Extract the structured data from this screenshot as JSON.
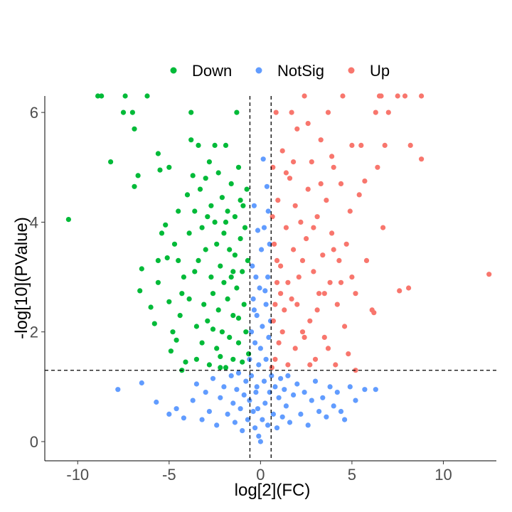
{
  "chart_data": {
    "type": "scatter",
    "title": "",
    "xlabel": "log[2](FC)",
    "ylabel": "-log[10](PValue)",
    "xlim": [
      -11.8,
      12.9
    ],
    "ylim": [
      -0.35,
      6.3
    ],
    "x_ticks": [
      -10,
      -5,
      0,
      5,
      10
    ],
    "x_tick_labels": [
      "-10",
      "-5",
      "0",
      "5",
      "10"
    ],
    "y_ticks": [
      0,
      2,
      4,
      6
    ],
    "y_tick_labels": [
      "0",
      "2",
      "4",
      "6"
    ],
    "grid": false,
    "legend_position": "top",
    "thresholds": {
      "fc_low": -0.58,
      "fc_high": 0.58,
      "pvalue_line": 1.3
    },
    "series": [
      {
        "name": "Down",
        "color": "#00BA38",
        "points": [
          [
            -10.5,
            4.05
          ],
          [
            -8.9,
            6.3
          ],
          [
            -8.7,
            6.3
          ],
          [
            -8.2,
            5.1
          ],
          [
            -7.5,
            6.0
          ],
          [
            -7.4,
            6.3
          ],
          [
            -7.0,
            6.0
          ],
          [
            -6.9,
            5.7
          ],
          [
            -6.9,
            4.65
          ],
          [
            -6.7,
            4.85
          ],
          [
            -6.6,
            2.75
          ],
          [
            -6.5,
            3.15
          ],
          [
            -6.2,
            6.3
          ],
          [
            -6.0,
            2.45
          ],
          [
            -5.8,
            2.15
          ],
          [
            -5.6,
            3.3
          ],
          [
            -5.6,
            2.9
          ],
          [
            -5.6,
            5.25
          ],
          [
            -5.5,
            4.95
          ],
          [
            -5.4,
            3.8
          ],
          [
            -5.2,
            3.95
          ],
          [
            -5.1,
            3.35
          ],
          [
            -5.0,
            2.55
          ],
          [
            -5.0,
            5.0
          ],
          [
            -4.9,
            1.65
          ],
          [
            -4.8,
            2.0
          ],
          [
            -4.7,
            3.6
          ],
          [
            -4.6,
            1.85
          ],
          [
            -4.5,
            4.2
          ],
          [
            -4.5,
            3.3
          ],
          [
            -4.4,
            2.3
          ],
          [
            -4.3,
            2.7
          ],
          [
            -4.2,
            3.0
          ],
          [
            -4.1,
            1.45
          ],
          [
            -4.0,
            4.5
          ],
          [
            -3.9,
            3.8
          ],
          [
            -3.8,
            6.0
          ],
          [
            -3.8,
            5.5
          ],
          [
            -3.7,
            4.85
          ],
          [
            -3.6,
            4.2
          ],
          [
            -3.5,
            2.1
          ],
          [
            -3.5,
            1.5
          ],
          [
            -3.4,
            5.4
          ],
          [
            -3.4,
            3.3
          ],
          [
            -3.3,
            4.6
          ],
          [
            -3.2,
            3.9
          ],
          [
            -3.2,
            1.8
          ],
          [
            -3.1,
            2.5
          ],
          [
            -3.0,
            4.8
          ],
          [
            -3.0,
            3.5
          ],
          [
            -2.9,
            2.2
          ],
          [
            -2.8,
            5.1
          ],
          [
            -2.8,
            1.4
          ],
          [
            -2.7,
            4.3
          ],
          [
            -2.7,
            3.0
          ],
          [
            -2.6,
            2.7
          ],
          [
            -2.5,
            5.4
          ],
          [
            -2.5,
            4.0
          ],
          [
            -2.4,
            3.6
          ],
          [
            -2.4,
            1.7
          ],
          [
            -2.3,
            4.9
          ],
          [
            -2.3,
            2.4
          ],
          [
            -2.2,
            3.2
          ],
          [
            -2.2,
            1.55
          ],
          [
            -2.1,
            4.45
          ],
          [
            -2.1,
            2.0
          ],
          [
            -2.0,
            3.8
          ],
          [
            -2.0,
            2.9
          ],
          [
            -1.9,
            5.4
          ],
          [
            -1.9,
            1.35
          ],
          [
            -1.8,
            4.2
          ],
          [
            -1.8,
            2.6
          ],
          [
            -1.7,
            3.5
          ],
          [
            -1.7,
            1.9
          ],
          [
            -1.6,
            4.7
          ],
          [
            -1.6,
            3.0
          ],
          [
            -1.5,
            2.3
          ],
          [
            -1.5,
            1.5
          ],
          [
            -1.4,
            4.1
          ],
          [
            -1.4,
            3.4
          ],
          [
            -1.3,
            6.0
          ],
          [
            -1.3,
            2.8
          ],
          [
            -1.2,
            5.0
          ],
          [
            -1.2,
            1.8
          ],
          [
            -1.1,
            4.4
          ],
          [
            -1.1,
            3.7
          ],
          [
            -1.0,
            3.1
          ],
          [
            -1.0,
            1.45
          ],
          [
            -0.95,
            4.3
          ],
          [
            -0.9,
            2.5
          ],
          [
            -0.85,
            3.9
          ],
          [
            -0.8,
            2.0
          ],
          [
            -0.75,
            4.6
          ],
          [
            -0.7,
            3.3
          ],
          [
            -0.65,
            1.6
          ],
          [
            -2.9,
            4.1
          ],
          [
            -3.6,
            3.1
          ],
          [
            -2.6,
            2.05
          ],
          [
            -1.9,
            4.0
          ],
          [
            -1.5,
            3.1
          ],
          [
            -2.2,
            1.35
          ],
          [
            -3.9,
            2.6
          ],
          [
            -4.3,
            1.3
          ],
          [
            -1.2,
            2.25
          ]
        ]
      },
      {
        "name": "NotSig",
        "color": "#619CFF",
        "points": [
          [
            -7.8,
            0.95
          ],
          [
            -6.5,
            1.07
          ],
          [
            -5.7,
            0.72
          ],
          [
            -5.0,
            0.5
          ],
          [
            -4.6,
            0.6
          ],
          [
            -4.2,
            0.43
          ],
          [
            -3.7,
            0.75
          ],
          [
            -3.5,
            1.05
          ],
          [
            -3.2,
            0.4
          ],
          [
            -3.0,
            0.9
          ],
          [
            -2.8,
            0.55
          ],
          [
            -2.6,
            1.15
          ],
          [
            -2.4,
            0.3
          ],
          [
            -2.2,
            0.8
          ],
          [
            -2.0,
            1.0
          ],
          [
            -1.8,
            0.5
          ],
          [
            -1.6,
            1.2
          ],
          [
            -1.5,
            0.7
          ],
          [
            -1.4,
            0.35
          ],
          [
            -1.3,
            0.95
          ],
          [
            -1.2,
            1.25
          ],
          [
            -1.1,
            0.6
          ],
          [
            -1.0,
            0.2
          ],
          [
            -0.9,
            0.85
          ],
          [
            -0.8,
            1.1
          ],
          [
            -0.7,
            0.4
          ],
          [
            -0.6,
            1.5
          ],
          [
            -0.6,
            0.75
          ],
          [
            -0.5,
            2.0
          ],
          [
            -0.5,
            1.2
          ],
          [
            -0.45,
            3.2
          ],
          [
            -0.4,
            0.55
          ],
          [
            -0.4,
            2.6
          ],
          [
            -0.35,
            4.3
          ],
          [
            -0.3,
            1.8
          ],
          [
            -0.3,
            0.25
          ],
          [
            -0.25,
            3.0
          ],
          [
            -0.2,
            1.0
          ],
          [
            -0.2,
            2.3
          ],
          [
            -0.15,
            0.6
          ],
          [
            -0.1,
            1.4
          ],
          [
            -0.1,
            0.1
          ],
          [
            -0.05,
            2.8
          ],
          [
            0.0,
            0.0
          ],
          [
            0.0,
            1.7
          ],
          [
            0.05,
            3.5
          ],
          [
            0.1,
            0.4
          ],
          [
            0.1,
            2.1
          ],
          [
            0.15,
            5.15
          ],
          [
            0.2,
            1.1
          ],
          [
            0.2,
            3.9
          ],
          [
            0.25,
            0.7
          ],
          [
            0.3,
            2.5
          ],
          [
            0.3,
            1.5
          ],
          [
            0.35,
            4.65
          ],
          [
            0.4,
            0.3
          ],
          [
            0.4,
            3.0
          ],
          [
            0.45,
            1.9
          ],
          [
            0.5,
            0.9
          ],
          [
            0.5,
            3.6
          ],
          [
            0.55,
            2.2
          ],
          [
            0.6,
            1.2
          ],
          [
            0.7,
            0.5
          ],
          [
            0.8,
            1.0
          ],
          [
            0.9,
            0.25
          ],
          [
            1.0,
            0.8
          ],
          [
            1.1,
            1.15
          ],
          [
            1.2,
            0.45
          ],
          [
            1.3,
            0.95
          ],
          [
            1.4,
            0.65
          ],
          [
            1.5,
            1.2
          ],
          [
            1.6,
            0.35
          ],
          [
            1.8,
            0.85
          ],
          [
            2.0,
            1.05
          ],
          [
            2.2,
            0.5
          ],
          [
            2.4,
            0.9
          ],
          [
            2.6,
            0.3
          ],
          [
            2.8,
            0.75
          ],
          [
            3.0,
            1.1
          ],
          [
            3.2,
            0.55
          ],
          [
            3.4,
            0.8
          ],
          [
            3.6,
            0.45
          ],
          [
            3.8,
            1.0
          ],
          [
            4.0,
            0.65
          ],
          [
            4.2,
            0.9
          ],
          [
            4.4,
            0.55
          ],
          [
            4.6,
            0.4
          ],
          [
            4.9,
            1.0
          ],
          [
            5.2,
            0.75
          ],
          [
            5.7,
            0.95
          ],
          [
            6.3,
            0.95
          ],
          [
            -0.35,
            2.4
          ],
          [
            0.25,
            2.75
          ],
          [
            -0.15,
            3.85
          ],
          [
            0.42,
            4.2
          ],
          [
            -0.25,
            0.9
          ]
        ]
      },
      {
        "name": "Up",
        "color": "#F8766D",
        "points": [
          [
            12.5,
            3.05
          ],
          [
            8.8,
            5.15
          ],
          [
            8.8,
            6.3
          ],
          [
            8.2,
            5.4
          ],
          [
            8.1,
            2.8
          ],
          [
            7.9,
            6.3
          ],
          [
            7.6,
            2.75
          ],
          [
            7.5,
            6.3
          ],
          [
            7.0,
            6.0
          ],
          [
            6.8,
            5.4
          ],
          [
            6.7,
            3.9
          ],
          [
            6.5,
            6.3
          ],
          [
            6.4,
            5.0
          ],
          [
            6.3,
            6.0
          ],
          [
            6.2,
            2.35
          ],
          [
            6.1,
            2.4
          ],
          [
            5.8,
            3.3
          ],
          [
            5.7,
            4.75
          ],
          [
            5.5,
            5.4
          ],
          [
            5.4,
            4.5
          ],
          [
            5.2,
            2.7
          ],
          [
            5.0,
            3.0
          ],
          [
            5.0,
            5.4
          ],
          [
            4.9,
            4.2
          ],
          [
            4.8,
            1.6
          ],
          [
            4.7,
            3.6
          ],
          [
            4.6,
            2.1
          ],
          [
            4.5,
            6.3
          ],
          [
            4.4,
            4.7
          ],
          [
            4.3,
            3.3
          ],
          [
            4.2,
            2.5
          ],
          [
            4.1,
            1.4
          ],
          [
            4.0,
            5.0
          ],
          [
            3.9,
            3.8
          ],
          [
            3.8,
            2.9
          ],
          [
            3.7,
            6.0
          ],
          [
            3.6,
            4.4
          ],
          [
            3.5,
            1.9
          ],
          [
            3.4,
            3.4
          ],
          [
            3.3,
            5.5
          ],
          [
            3.2,
            2.7
          ],
          [
            3.1,
            4.1
          ],
          [
            3.0,
            1.5
          ],
          [
            2.9,
            3.1
          ],
          [
            2.8,
            5.1
          ],
          [
            2.7,
            2.2
          ],
          [
            2.6,
            4.6
          ],
          [
            2.5,
            3.7
          ],
          [
            2.4,
            6.3
          ],
          [
            2.3,
            2.0
          ],
          [
            2.2,
            4.0
          ],
          [
            2.1,
            3.0
          ],
          [
            2.0,
            5.7
          ],
          [
            1.9,
            1.7
          ],
          [
            1.8,
            3.5
          ],
          [
            1.7,
            2.6
          ],
          [
            1.6,
            4.8
          ],
          [
            1.5,
            1.4
          ],
          [
            1.4,
            3.9
          ],
          [
            1.3,
            2.4
          ],
          [
            1.2,
            5.3
          ],
          [
            1.1,
            3.2
          ],
          [
            1.0,
            1.8
          ],
          [
            0.95,
            4.4
          ],
          [
            0.9,
            2.9
          ],
          [
            0.85,
            6.0
          ],
          [
            0.8,
            1.5
          ],
          [
            0.75,
            3.6
          ],
          [
            0.7,
            2.2
          ],
          [
            0.68,
            5.0
          ],
          [
            0.65,
            4.1
          ],
          [
            0.62,
            1.35
          ],
          [
            1.5,
            2.9
          ],
          [
            2.3,
            3.3
          ],
          [
            3.1,
            2.4
          ],
          [
            1.9,
            4.3
          ],
          [
            2.7,
            1.4
          ],
          [
            1.2,
            2.0
          ],
          [
            3.5,
            2.7
          ],
          [
            4.0,
            3.5
          ],
          [
            2.6,
            5.8
          ],
          [
            1.7,
            6.0
          ],
          [
            3.9,
            5.2
          ],
          [
            0.9,
            3.3
          ],
          [
            2.0,
            2.5
          ],
          [
            3.3,
            4.7
          ],
          [
            1.4,
            4.9
          ],
          [
            2.9,
            3.9
          ],
          [
            4.4,
            2.9
          ],
          [
            1.1,
            2.7
          ],
          [
            2.4,
            1.9
          ],
          [
            3.7,
            1.7
          ],
          [
            0.8,
            2.5
          ],
          [
            1.8,
            5.1
          ],
          [
            5.2,
            1.3
          ],
          [
            6.6,
            6.3
          ]
        ]
      }
    ]
  }
}
